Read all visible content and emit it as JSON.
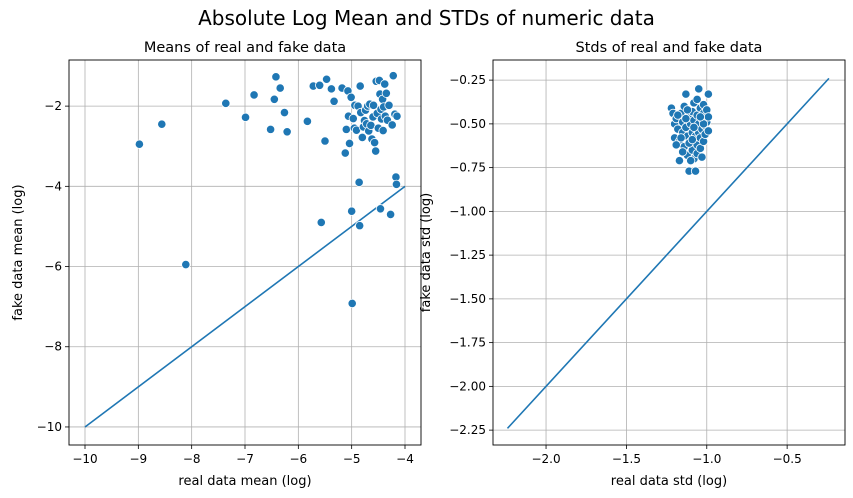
{
  "suptitle": "Absolute Log Mean and STDs of numeric data",
  "chart_data": [
    {
      "type": "scatter",
      "title": "Means of real and fake data",
      "xlabel": "real data mean (log)",
      "ylabel": "fake data mean (log)",
      "xlim": [
        -10.3,
        -3.7
      ],
      "ylim": [
        -10.45,
        -0.85
      ],
      "xticks": [
        -10,
        -9,
        -8,
        -7,
        -6,
        -5,
        -4
      ],
      "yticks": [
        -10,
        -8,
        -6,
        -4,
        -2
      ],
      "grid": true,
      "color": "#1f77b4",
      "line": {
        "x": [
          -10,
          -4
        ],
        "y": [
          -10,
          -4
        ]
      },
      "points": [
        [
          -8.98,
          -2.95
        ],
        [
          -8.56,
          -2.45
        ],
        [
          -8.11,
          -5.95
        ],
        [
          -7.36,
          -1.93
        ],
        [
          -6.99,
          -2.28
        ],
        [
          -6.83,
          -1.72
        ],
        [
          -6.52,
          -2.58
        ],
        [
          -6.45,
          -1.83
        ],
        [
          -6.42,
          -1.27
        ],
        [
          -6.34,
          -1.55
        ],
        [
          -6.26,
          -2.16
        ],
        [
          -6.21,
          -2.64
        ],
        [
          -5.83,
          -2.38
        ],
        [
          -5.72,
          -1.5
        ],
        [
          -5.6,
          -1.48
        ],
        [
          -5.57,
          -4.9
        ],
        [
          -5.5,
          -2.87
        ],
        [
          -5.47,
          -1.33
        ],
        [
          -5.38,
          -1.57
        ],
        [
          -5.33,
          -1.88
        ],
        [
          -5.18,
          -1.55
        ],
        [
          -5.12,
          -3.17
        ],
        [
          -5.1,
          -2.58
        ],
        [
          -5.07,
          -1.62
        ],
        [
          -5.06,
          -2.25
        ],
        [
          -5.04,
          -2.93
        ],
        [
          -5.01,
          -1.78
        ],
        [
          -5.0,
          -4.62
        ],
        [
          -4.99,
          -6.92
        ],
        [
          -4.97,
          -2.31
        ],
        [
          -4.95,
          -2.55
        ],
        [
          -4.94,
          -1.98
        ],
        [
          -4.91,
          -2.6
        ],
        [
          -4.88,
          -2.0
        ],
        [
          -4.86,
          -3.9
        ],
        [
          -4.85,
          -4.98
        ],
        [
          -4.84,
          -1.5
        ],
        [
          -4.83,
          -2.16
        ],
        [
          -4.8,
          -2.78
        ],
        [
          -4.78,
          -2.52
        ],
        [
          -4.76,
          -2.36
        ],
        [
          -4.74,
          -2.1
        ],
        [
          -4.72,
          -2.44
        ],
        [
          -4.7,
          -2.0
        ],
        [
          -4.68,
          -2.62
        ],
        [
          -4.66,
          -1.95
        ],
        [
          -4.64,
          -2.48
        ],
        [
          -4.62,
          -2.82
        ],
        [
          -4.6,
          -2.27
        ],
        [
          -4.59,
          -1.98
        ],
        [
          -4.57,
          -2.91
        ],
        [
          -4.55,
          -3.12
        ],
        [
          -4.54,
          -1.38
        ],
        [
          -4.52,
          -2.18
        ],
        [
          -4.5,
          -2.55
        ],
        [
          -4.48,
          -1.36
        ],
        [
          -4.47,
          -1.7
        ],
        [
          -4.46,
          -4.56
        ],
        [
          -4.45,
          -2.08
        ],
        [
          -4.44,
          -2.32
        ],
        [
          -4.42,
          -1.83
        ],
        [
          -4.41,
          -2.61
        ],
        [
          -4.4,
          -2.02
        ],
        [
          -4.38,
          -1.45
        ],
        [
          -4.37,
          -2.25
        ],
        [
          -4.35,
          -1.68
        ],
        [
          -4.33,
          -2.35
        ],
        [
          -4.3,
          -1.98
        ],
        [
          -4.27,
          -4.7
        ],
        [
          -4.24,
          -2.47
        ],
        [
          -4.22,
          -1.24
        ],
        [
          -4.19,
          -2.2
        ],
        [
          -4.17,
          -3.77
        ],
        [
          -4.16,
          -3.95
        ],
        [
          -4.15,
          -2.25
        ]
      ]
    },
    {
      "type": "scatter",
      "title": "Stds of real and fake data",
      "xlabel": "real data std (log)",
      "ylabel": "fake data std (log)",
      "xlim": [
        -2.33,
        -0.14
      ],
      "ylim": [
        -2.335,
        -0.135
      ],
      "xticks": [
        -2.0,
        -1.5,
        -1.0,
        -0.5
      ],
      "yticks": [
        -2.25,
        -2.0,
        -1.75,
        -1.5,
        -1.25,
        -1.0,
        -0.75,
        -0.5,
        -0.25
      ],
      "xtick_labels": [
        "−2.0",
        "−1.5",
        "−1.0",
        "−0.5"
      ],
      "ytick_labels": [
        "−2.25",
        "−2.00",
        "−1.75",
        "−1.50",
        "−1.25",
        "−1.00",
        "−0.75",
        "−0.50",
        "−0.25"
      ],
      "grid": true,
      "color": "#1f77b4",
      "line": {
        "x": [
          -2.24,
          -0.24
        ],
        "y": [
          -2.24,
          -0.24
        ]
      },
      "points": [
        [
          -1.22,
          -0.41
        ],
        [
          -1.21,
          -0.44
        ],
        [
          -1.2,
          -0.5
        ],
        [
          -1.2,
          -0.58
        ],
        [
          -1.19,
          -0.47
        ],
        [
          -1.18,
          -0.53
        ],
        [
          -1.17,
          -0.6
        ],
        [
          -1.17,
          -0.71
        ],
        [
          -1.16,
          -0.44
        ],
        [
          -1.15,
          -0.55
        ],
        [
          -1.15,
          -0.49
        ],
        [
          -1.14,
          -0.63
        ],
        [
          -1.13,
          -0.52
        ],
        [
          -1.13,
          -0.33
        ],
        [
          -1.12,
          -0.57
        ],
        [
          -1.12,
          -0.68
        ],
        [
          -1.11,
          -0.45
        ],
        [
          -1.11,
          -0.77
        ],
        [
          -1.1,
          -0.5
        ],
        [
          -1.1,
          -0.6
        ],
        [
          -1.09,
          -0.55
        ],
        [
          -1.09,
          -0.65
        ],
        [
          -1.09,
          -0.43
        ],
        [
          -1.08,
          -0.48
        ],
        [
          -1.08,
          -0.7
        ],
        [
          -1.08,
          -0.38
        ],
        [
          -1.07,
          -0.57
        ],
        [
          -1.07,
          -0.52
        ],
        [
          -1.07,
          -0.77
        ],
        [
          -1.06,
          -0.62
        ],
        [
          -1.06,
          -0.45
        ],
        [
          -1.06,
          -0.67
        ],
        [
          -1.05,
          -0.3
        ],
        [
          -1.05,
          -0.55
        ],
        [
          -1.05,
          -0.5
        ],
        [
          -1.04,
          -0.58
        ],
        [
          -1.04,
          -0.41
        ],
        [
          -1.04,
          -0.64
        ],
        [
          -1.03,
          -0.69
        ],
        [
          -1.03,
          -0.47
        ],
        [
          -1.03,
          -0.53
        ],
        [
          -1.02,
          -0.39
        ],
        [
          -1.02,
          -0.6
        ],
        [
          -1.02,
          -0.44
        ],
        [
          -1.01,
          -0.51
        ],
        [
          -1.01,
          -0.56
        ],
        [
          -1.0,
          -0.49
        ],
        [
          -1.0,
          -0.42
        ],
        [
          -0.99,
          -0.46
        ],
        [
          -0.99,
          -0.33
        ],
        [
          -0.99,
          -0.54
        ],
        [
          -1.11,
          -0.61
        ],
        [
          -1.13,
          -0.47
        ],
        [
          -1.16,
          -0.58
        ],
        [
          -1.18,
          -0.45
        ],
        [
          -1.14,
          -0.4
        ],
        [
          -1.1,
          -0.71
        ],
        [
          -1.06,
          -0.36
        ],
        [
          -1.02,
          -0.5
        ],
        [
          -1.15,
          -0.66
        ],
        [
          -1.08,
          -0.52
        ],
        [
          -1.12,
          -0.42
        ],
        [
          -1.04,
          -0.46
        ],
        [
          -1.09,
          -0.59
        ],
        [
          -1.19,
          -0.62
        ]
      ]
    }
  ]
}
